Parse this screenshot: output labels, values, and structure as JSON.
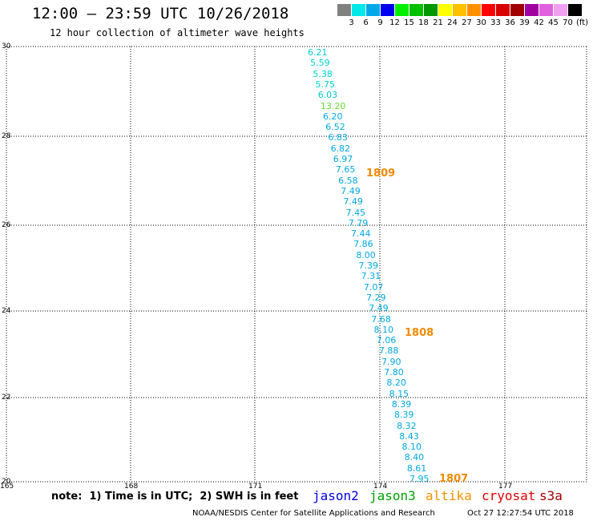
{
  "title": "12:00 – 23:59 UTC 10/26/2018",
  "subtitle": "12 hour collection of altimeter wave heights",
  "scale": {
    "labels": [
      "3",
      "6",
      "9",
      "12",
      "15",
      "18",
      "21",
      "24",
      "27",
      "30",
      "33",
      "36",
      "39",
      "42",
      "45",
      "70",
      "(ft)"
    ],
    "colors": [
      "#808080",
      "#00e8e8",
      "#00a8e8",
      "#0000f0",
      "#00f000",
      "#00c000",
      "#009800",
      "#ffff00",
      "#ffc000",
      "#ff9000",
      "#ff0000",
      "#d80000",
      "#a00000",
      "#a000a0",
      "#e060e0",
      "#f0a0f0",
      "#000000"
    ]
  },
  "lat_labels": [
    "30",
    "28",
    "26",
    "24",
    "22",
    "20"
  ],
  "lon_labels": [
    "165",
    "168",
    "171",
    "174",
    "177"
  ],
  "track": [
    {
      "v": "6.21",
      "c": "#00c8c8"
    },
    {
      "v": "5.59",
      "c": "#00d0d0"
    },
    {
      "v": "5.38",
      "c": "#00d0d0"
    },
    {
      "v": "5.75",
      "c": "#00d0d0"
    },
    {
      "v": "6.03",
      "c": "#00c8c8"
    },
    {
      "v": "13.20",
      "c": "#66dd33"
    },
    {
      "v": "6.20",
      "c": "#00a8e0"
    },
    {
      "v": "6.52",
      "c": "#00a8e0"
    },
    {
      "v": "6.83",
      "c": "#00a8e0"
    },
    {
      "v": "6.82",
      "c": "#00a8e0"
    },
    {
      "v": "6.97",
      "c": "#00a8e0"
    },
    {
      "v": "7.65",
      "c": "#00a8e0"
    },
    {
      "v": "6.58",
      "c": "#00a8e0"
    },
    {
      "v": "7.49",
      "c": "#00a8e0"
    },
    {
      "v": "7.49",
      "c": "#00a8e0"
    },
    {
      "v": "7.45",
      "c": "#00a8e0"
    },
    {
      "v": "7.79",
      "c": "#00a8e0"
    },
    {
      "v": "7.44",
      "c": "#00a8e0"
    },
    {
      "v": "7.86",
      "c": "#00a8e0"
    },
    {
      "v": "8.00",
      "c": "#00a8e0"
    },
    {
      "v": "7.39",
      "c": "#00a8e0"
    },
    {
      "v": "7.31",
      "c": "#00a8e0"
    },
    {
      "v": "7.07",
      "c": "#00a8e0"
    },
    {
      "v": "7.29",
      "c": "#00a8e0"
    },
    {
      "v": "7.49",
      "c": "#00a8e0"
    },
    {
      "v": "7.68",
      "c": "#00a8e0"
    },
    {
      "v": "8.10",
      "c": "#00a8e0"
    },
    {
      "v": "7.06",
      "c": "#00a8e0"
    },
    {
      "v": "7.88",
      "c": "#00a8e0"
    },
    {
      "v": "7.90",
      "c": "#00a8e0"
    },
    {
      "v": "7.80",
      "c": "#00a8e0"
    },
    {
      "v": "8.20",
      "c": "#00a8e0"
    },
    {
      "v": "8.15",
      "c": "#00a8e0"
    },
    {
      "v": "8.39",
      "c": "#00a8e0"
    },
    {
      "v": "8.39",
      "c": "#00a8e0"
    },
    {
      "v": "8.32",
      "c": "#00a8e0"
    },
    {
      "v": "8.43",
      "c": "#00a8e0"
    },
    {
      "v": "8.10",
      "c": "#00a8e0"
    },
    {
      "v": "8.40",
      "c": "#00a8e0"
    },
    {
      "v": "8.61",
      "c": "#00a8e0"
    },
    {
      "v": "7.95",
      "c": "#00a8e0"
    }
  ],
  "pass_times": [
    "1809",
    "1808",
    "1807"
  ],
  "note": "note:  1) Time is in UTC;  2) SWH is in feet",
  "satellites": [
    {
      "name": "jason2",
      "color": "#0000e0"
    },
    {
      "name": "jason3",
      "color": "#00a000"
    },
    {
      "name": "altika",
      "color": "#f09000"
    },
    {
      "name": "cryosat",
      "color": "#e00000"
    },
    {
      "name": "s3a",
      "color": "#a00000"
    }
  ],
  "credit": "NOAA/NESDIS Center for Satellite Applications and Research",
  "timestamp": "Oct 27 12:27:54 UTC 2018"
}
